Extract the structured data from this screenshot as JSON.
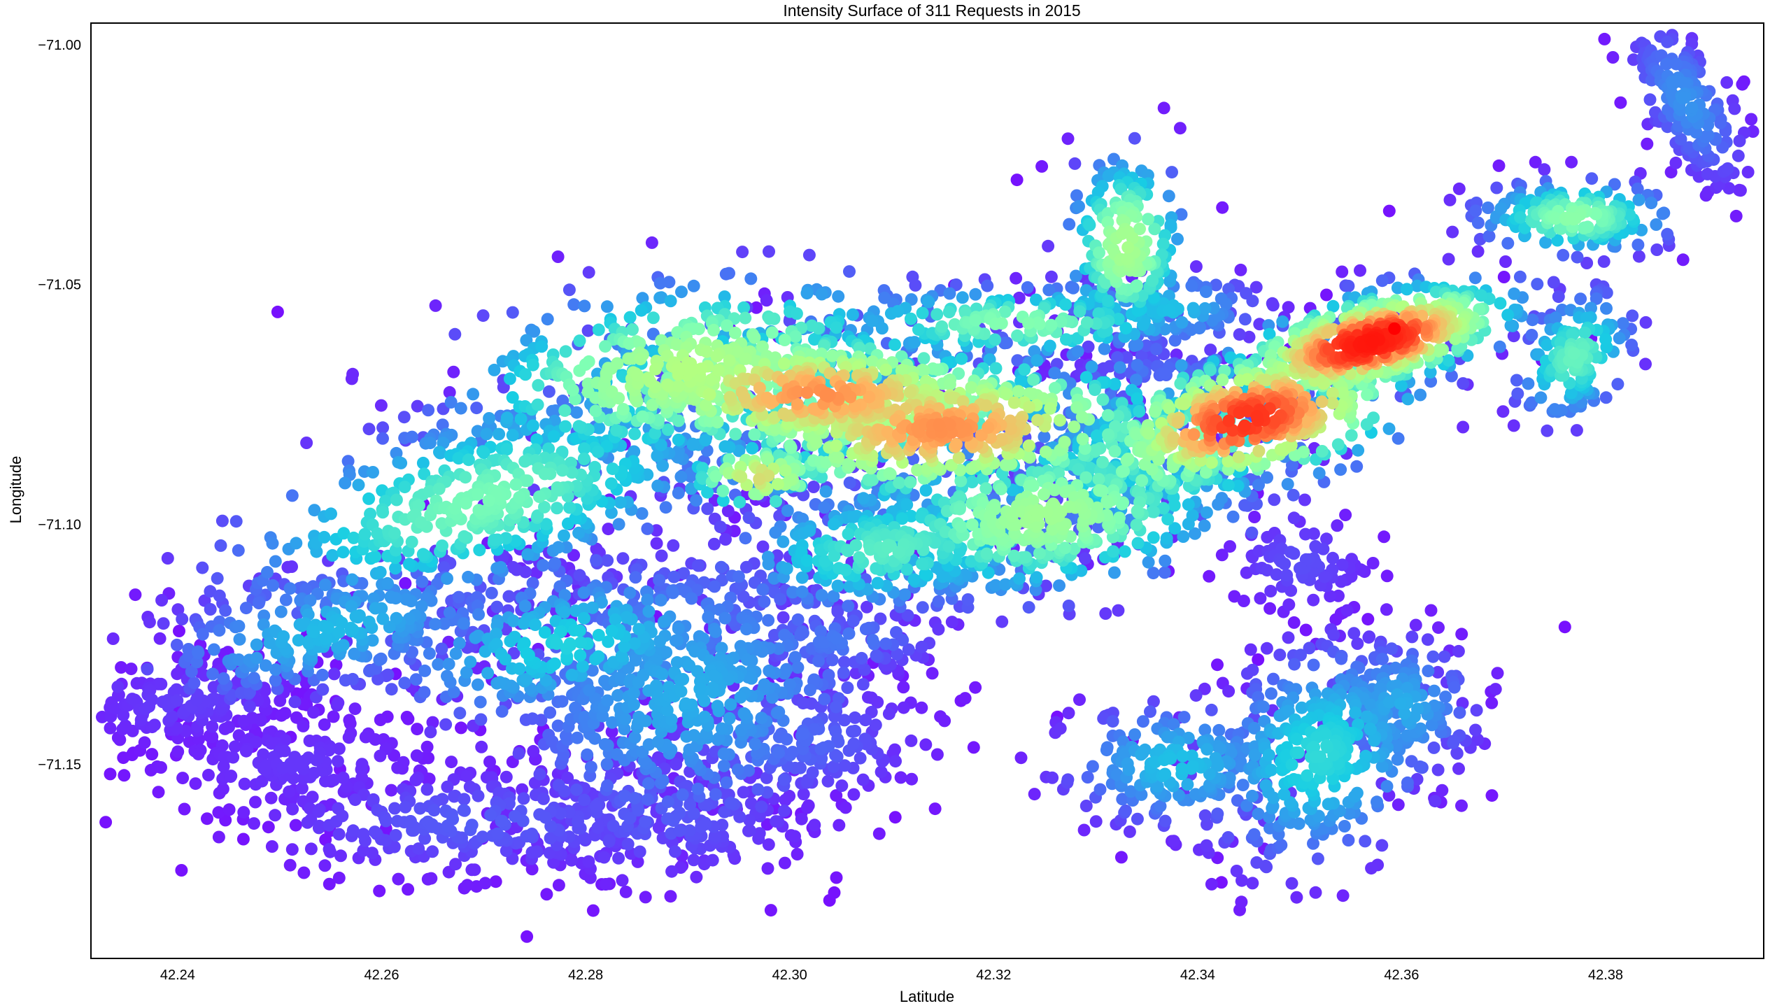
{
  "chart_data": {
    "type": "scatter",
    "title": "Intensity Surface of 311 Requests in 2015",
    "xlabel": "Latitude",
    "ylabel": "Longitude",
    "xlim": [
      42.2315,
      42.3955
    ],
    "ylim": [
      -71.1905,
      -70.9955
    ],
    "x_ticks": [
      42.24,
      42.26,
      42.28,
      42.3,
      42.32,
      42.34,
      42.36,
      42.38
    ],
    "y_ticks": [
      -71.0,
      -71.05,
      -71.1,
      -71.15
    ],
    "x_tick_labels": [
      "42.24",
      "42.26",
      "42.28",
      "42.30",
      "42.32",
      "42.34",
      "42.36",
      "42.38"
    ],
    "y_tick_labels": [
      "−71.00",
      "−71.05",
      "−71.10",
      "−71.15"
    ],
    "grid": false,
    "legend": "none",
    "colormap": "rainbow",
    "colormap_stops": [
      "#7f00ff",
      "#4a6ff5",
      "#18cde4",
      "#80ffb4",
      "#b4ff80",
      "#ffb360",
      "#ff3b1f",
      "#ff0000"
    ],
    "marker_color_low": "#7f00ff",
    "marker_color_high": "#ff0000",
    "series": [
      {
        "clusters": [
          {
            "x": 42.357,
            "y": -71.062,
            "sx": 0.007,
            "sy": 0.006,
            "rho": 0.55,
            "n": 520,
            "intensity": 0.93
          },
          {
            "x": 42.345,
            "y": -71.078,
            "sx": 0.008,
            "sy": 0.008,
            "rho": 0.4,
            "n": 420,
            "intensity": 0.86
          },
          {
            "x": 42.303,
            "y": -71.073,
            "sx": 0.012,
            "sy": 0.007,
            "rho": -0.1,
            "n": 520,
            "intensity": 0.74
          },
          {
            "x": 42.315,
            "y": -71.08,
            "sx": 0.012,
            "sy": 0.008,
            "rho": 0.1,
            "n": 520,
            "intensity": 0.74
          },
          {
            "x": 42.29,
            "y": -71.068,
            "sx": 0.012,
            "sy": 0.01,
            "rho": 0.3,
            "n": 420,
            "intensity": 0.55
          },
          {
            "x": 42.27,
            "y": -71.095,
            "sx": 0.013,
            "sy": 0.012,
            "rho": 0.55,
            "n": 500,
            "intensity": 0.4
          },
          {
            "x": 42.255,
            "y": -71.122,
            "sx": 0.01,
            "sy": 0.008,
            "rho": 0.5,
            "n": 320,
            "intensity": 0.24
          },
          {
            "x": 42.241,
            "y": -71.137,
            "sx": 0.006,
            "sy": 0.005,
            "rho": 0.2,
            "n": 180,
            "intensity": 0.06
          },
          {
            "x": 42.29,
            "y": -71.135,
            "sx": 0.01,
            "sy": 0.016,
            "rho": 0.1,
            "n": 600,
            "intensity": 0.22
          },
          {
            "x": 42.278,
            "y": -71.125,
            "sx": 0.01,
            "sy": 0.009,
            "rho": 0.3,
            "n": 300,
            "intensity": 0.28
          },
          {
            "x": 42.27,
            "y": -71.162,
            "sx": 0.012,
            "sy": 0.006,
            "rho": 0.0,
            "n": 280,
            "intensity": 0.1
          },
          {
            "x": 42.252,
            "y": -71.15,
            "sx": 0.008,
            "sy": 0.006,
            "rho": 0.0,
            "n": 180,
            "intensity": 0.05
          },
          {
            "x": 42.325,
            "y": -71.098,
            "sx": 0.01,
            "sy": 0.009,
            "rho": 0.2,
            "n": 420,
            "intensity": 0.5
          },
          {
            "x": 42.31,
            "y": -71.105,
            "sx": 0.009,
            "sy": 0.007,
            "rho": 0.2,
            "n": 300,
            "intensity": 0.36
          },
          {
            "x": 42.337,
            "y": -71.085,
            "sx": 0.007,
            "sy": 0.008,
            "rho": 0.3,
            "n": 260,
            "intensity": 0.48
          },
          {
            "x": 42.333,
            "y": -71.042,
            "sx": 0.003,
            "sy": 0.01,
            "rho": 0.0,
            "n": 200,
            "intensity": 0.52
          },
          {
            "x": 42.322,
            "y": -71.058,
            "sx": 0.01,
            "sy": 0.004,
            "rho": 0.0,
            "n": 200,
            "intensity": 0.42
          },
          {
            "x": 42.377,
            "y": -71.036,
            "sx": 0.005,
            "sy": 0.004,
            "rho": 0.0,
            "n": 180,
            "intensity": 0.44
          },
          {
            "x": 42.388,
            "y": -71.012,
            "sx": 0.003,
            "sy": 0.009,
            "rho": -0.6,
            "n": 180,
            "intensity": 0.18
          },
          {
            "x": 42.377,
            "y": -71.065,
            "sx": 0.003,
            "sy": 0.007,
            "rho": 0.3,
            "n": 140,
            "intensity": 0.38
          },
          {
            "x": 42.352,
            "y": -71.148,
            "sx": 0.006,
            "sy": 0.012,
            "rho": 0.2,
            "n": 380,
            "intensity": 0.3
          },
          {
            "x": 42.338,
            "y": -71.15,
            "sx": 0.006,
            "sy": 0.007,
            "rho": 0.0,
            "n": 200,
            "intensity": 0.25
          },
          {
            "x": 42.36,
            "y": -71.138,
            "sx": 0.004,
            "sy": 0.008,
            "rho": 0.0,
            "n": 160,
            "intensity": 0.22
          },
          {
            "x": 42.35,
            "y": -71.108,
            "sx": 0.004,
            "sy": 0.006,
            "rho": 0.0,
            "n": 90,
            "intensity": 0.08
          },
          {
            "x": 42.337,
            "y": -71.055,
            "sx": 0.005,
            "sy": 0.004,
            "rho": 0.0,
            "n": 90,
            "intensity": 0.25
          },
          {
            "x": 42.338,
            "y": -71.068,
            "sx": 0.006,
            "sy": 0.002,
            "rho": 0.0,
            "n": 70,
            "intensity": 0.12
          },
          {
            "x": 42.3,
            "y": -71.145,
            "sx": 0.007,
            "sy": 0.007,
            "rho": 0.0,
            "n": 160,
            "intensity": 0.12
          },
          {
            "x": 42.287,
            "y": -71.16,
            "sx": 0.008,
            "sy": 0.008,
            "rho": 0.0,
            "n": 200,
            "intensity": 0.1
          },
          {
            "x": 42.305,
            "y": -71.124,
            "sx": 0.006,
            "sy": 0.004,
            "rho": 0.0,
            "n": 90,
            "intensity": 0.14
          },
          {
            "x": 42.297,
            "y": -71.09,
            "sx": 0.004,
            "sy": 0.004,
            "rho": 0.0,
            "n": 80,
            "intensity": 0.62
          }
        ],
        "peak": {
          "x": 42.3593,
          "y": -71.0592
        }
      }
    ]
  }
}
